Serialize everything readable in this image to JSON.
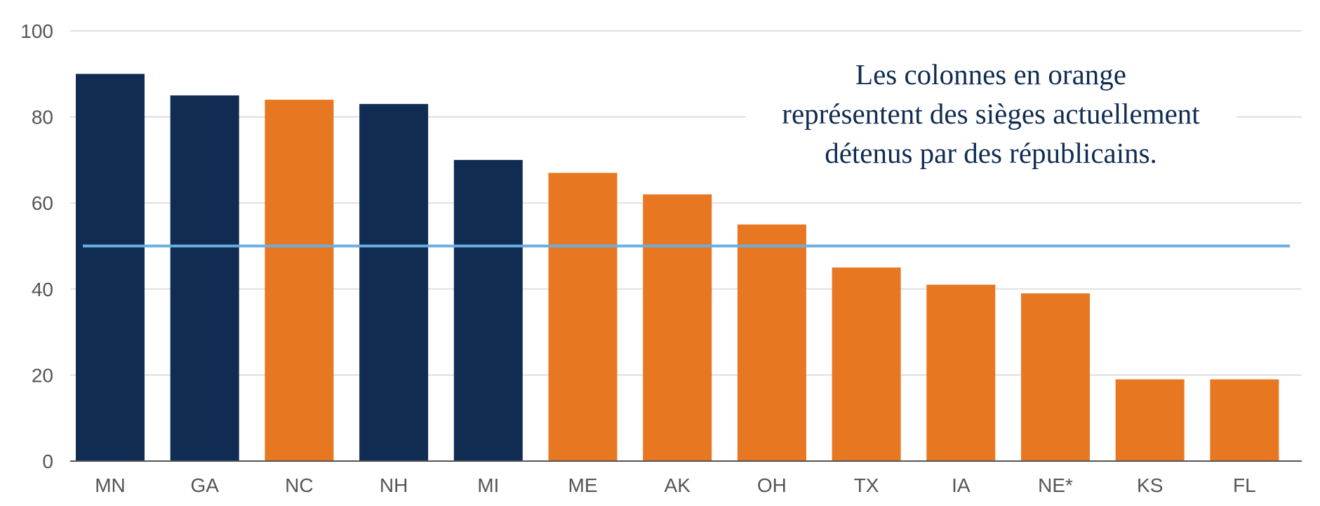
{
  "chart_data": {
    "type": "bar",
    "title": "",
    "xlabel": "",
    "ylabel": "",
    "ylim": [
      0,
      100
    ],
    "yticks": [
      0,
      20,
      40,
      60,
      80,
      100
    ],
    "grid": true,
    "categories": [
      "MN",
      "GA",
      "NC",
      "NH",
      "MI",
      "ME",
      "AK",
      "OH",
      "TX",
      "IA",
      "NE*",
      "KS",
      "FL"
    ],
    "values": [
      90,
      85,
      84,
      83,
      70,
      67,
      62,
      55,
      45,
      41,
      39,
      19,
      19
    ],
    "bar_colors": [
      "#102c52",
      "#102c52",
      "#e87722",
      "#102c52",
      "#102c52",
      "#e87722",
      "#e87722",
      "#e87722",
      "#e87722",
      "#e87722",
      "#e87722",
      "#e87722",
      "#e87722"
    ],
    "reference_line": {
      "value": 50,
      "color": "#6aaee0"
    },
    "annotation": "Les colonnes en orange\nreprésentent des sièges actuellement\ndétenus par des républicains."
  },
  "colors": {
    "democrat_bar": "#102c52",
    "republican_bar": "#e87722",
    "reference_line": "#6aaee0",
    "gridline": "#cccccc",
    "axis": "#555555",
    "label_text": "#555555"
  }
}
